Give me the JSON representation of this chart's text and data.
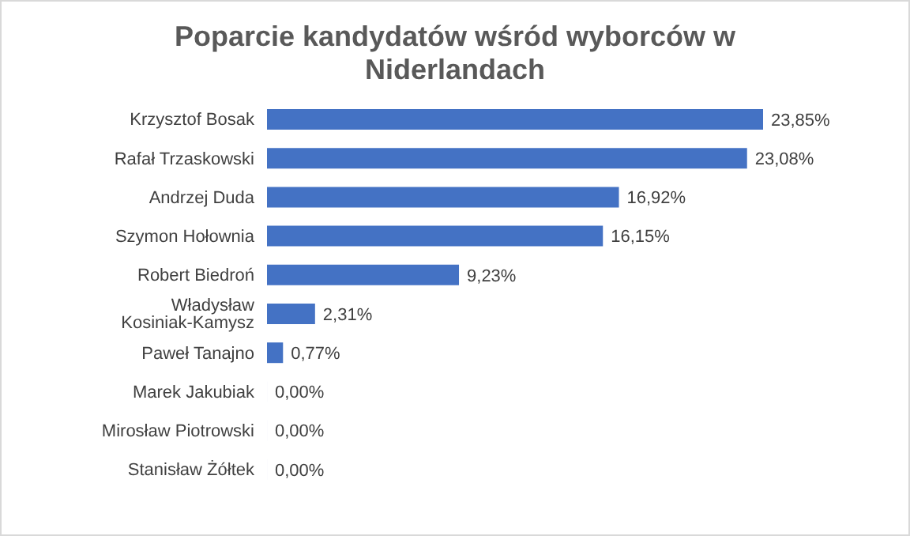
{
  "chart_data": {
    "type": "bar",
    "orientation": "horizontal",
    "title": "Poparcie kandydatów wśród wyborców w Niderlandach",
    "categories": [
      "Krzysztof Bosak",
      "Rafał Trzaskowski",
      "Andrzej Duda",
      "Szymon Hołownia",
      "Robert Biedroń",
      "Władysław Kosiniak-Kamysz",
      "Paweł Tanajno",
      "Marek Jakubiak",
      "Mirosław Piotrowski",
      "Stanisław Żółtek"
    ],
    "values": [
      23.85,
      23.08,
      16.92,
      16.15,
      9.23,
      2.31,
      0.77,
      0,
      0,
      0
    ],
    "value_labels": [
      "23,85%",
      "23,08%",
      "16,92%",
      "16,15%",
      "9,23%",
      "2,31%",
      "0,77%",
      "0,00%",
      "0,00%",
      "0,00%"
    ],
    "color": "#4472c4",
    "grid": false,
    "legend": false
  }
}
